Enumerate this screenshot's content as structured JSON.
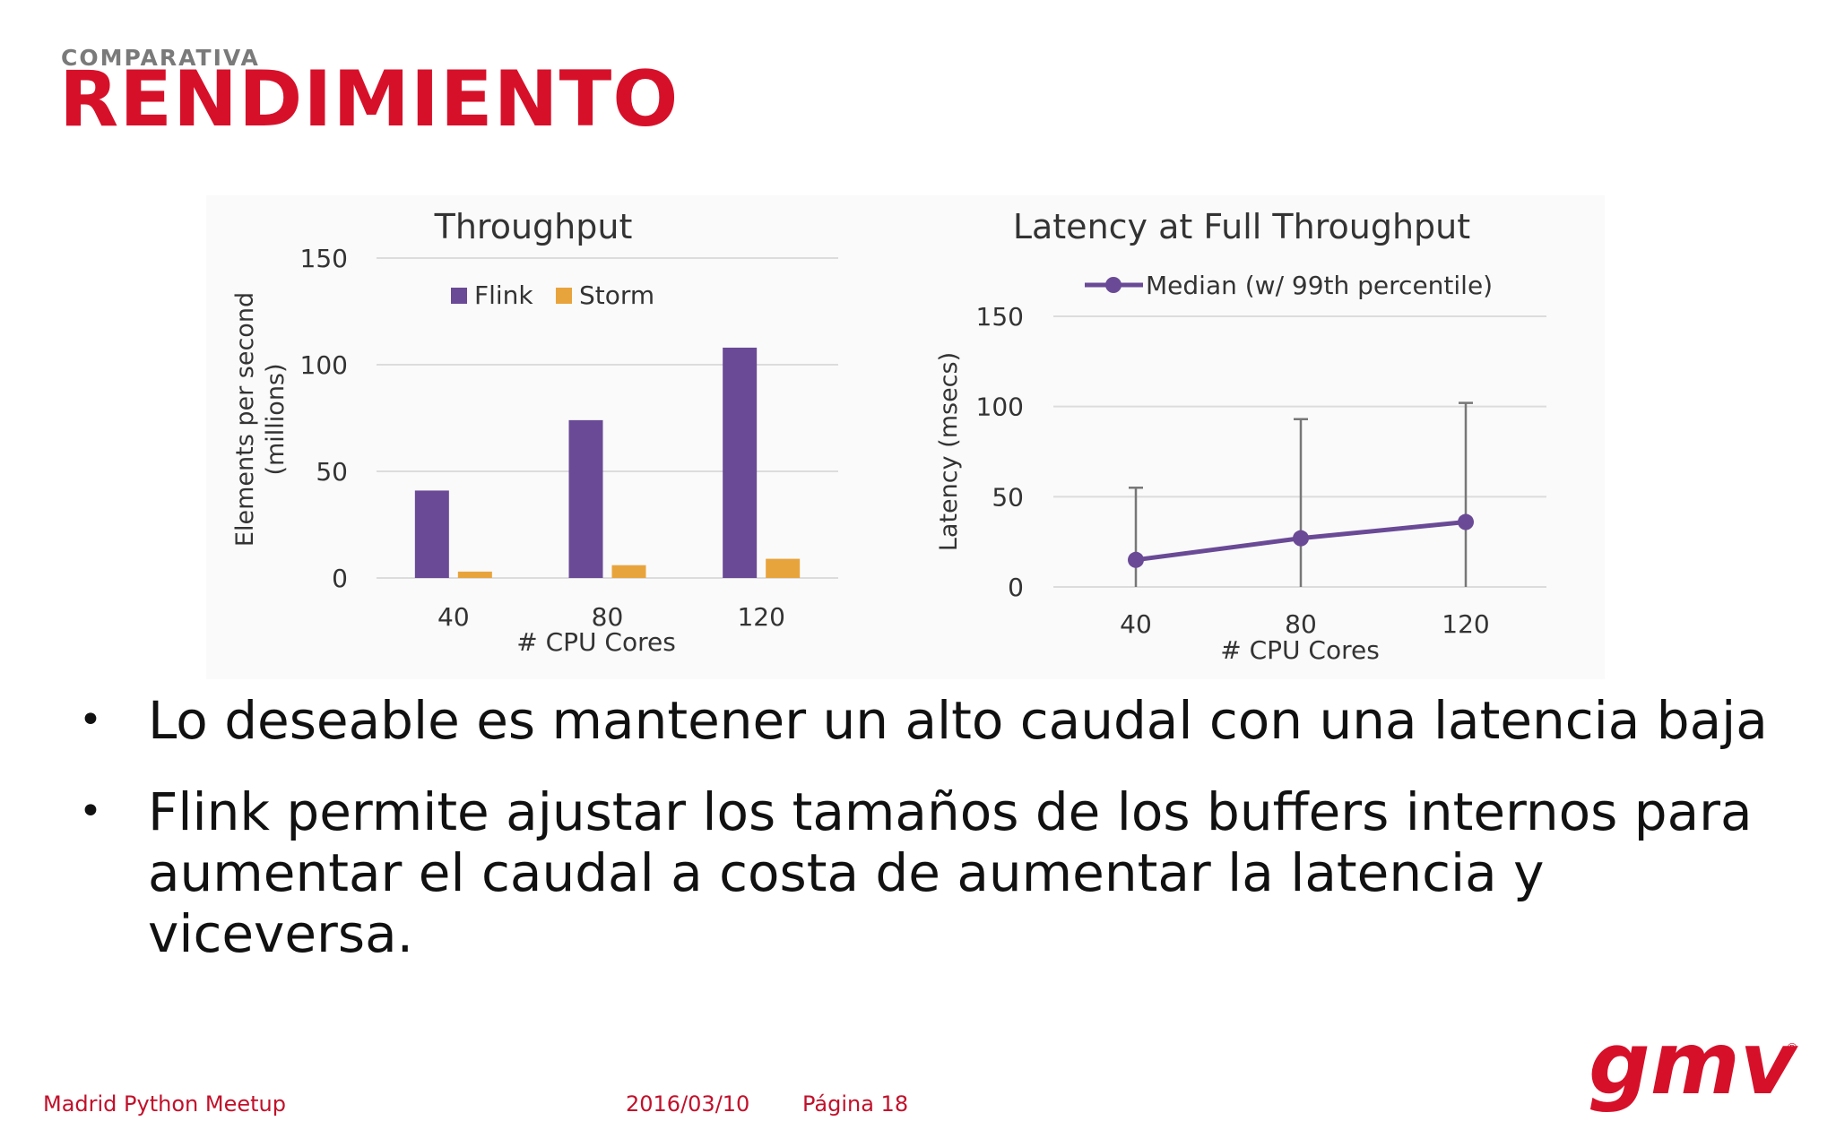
{
  "header": {
    "kicker": "COMPARATIVA",
    "title": "RENDIMIENTO"
  },
  "chart_data": [
    {
      "type": "bar",
      "title": "Throughput",
      "xlabel": "# CPU Cores",
      "ylabel_line1": "Elements per second",
      "ylabel_line2": "(millions)",
      "categories": [
        "40",
        "80",
        "120"
      ],
      "yticks": [
        "0",
        "50",
        "100",
        "150"
      ],
      "ylim": [
        0,
        150
      ],
      "grid": true,
      "legend": "top",
      "series": [
        {
          "name": "Flink",
          "values": [
            41,
            74,
            108
          ],
          "color": "#6a4a96"
        },
        {
          "name": "Storm",
          "values": [
            3,
            6,
            9
          ],
          "color": "#e8a43c"
        }
      ]
    },
    {
      "type": "line",
      "title": "Latency at Full Throughput",
      "xlabel": "# CPU Cores",
      "ylabel": "Latency (msecs)",
      "categories": [
        "40",
        "80",
        "120"
      ],
      "yticks": [
        "0",
        "50",
        "100",
        "150"
      ],
      "ylim": [
        0,
        150
      ],
      "grid": true,
      "legend": "top",
      "series": [
        {
          "name": "Median (w/ 99th percentile)",
          "values": [
            15,
            27,
            36
          ],
          "error_low": [
            0,
            0,
            0
          ],
          "error_high": [
            55,
            93,
            102
          ],
          "color": "#6a4a96"
        }
      ]
    }
  ],
  "bullets": [
    "Lo deseable es mantener un alto caudal con una latencia baja",
    "Flink permite ajustar los tamaños de los buffers internos para aumentar el caudal a costa de aumentar la latencia y viceversa."
  ],
  "bullet_symbol": "•",
  "footer": {
    "event": "Madrid Python Meetup",
    "date": "2016/03/10",
    "page": "Página 18"
  },
  "logo": {
    "text": "gmv",
    "registered": "®",
    "color": "#d7102a"
  }
}
